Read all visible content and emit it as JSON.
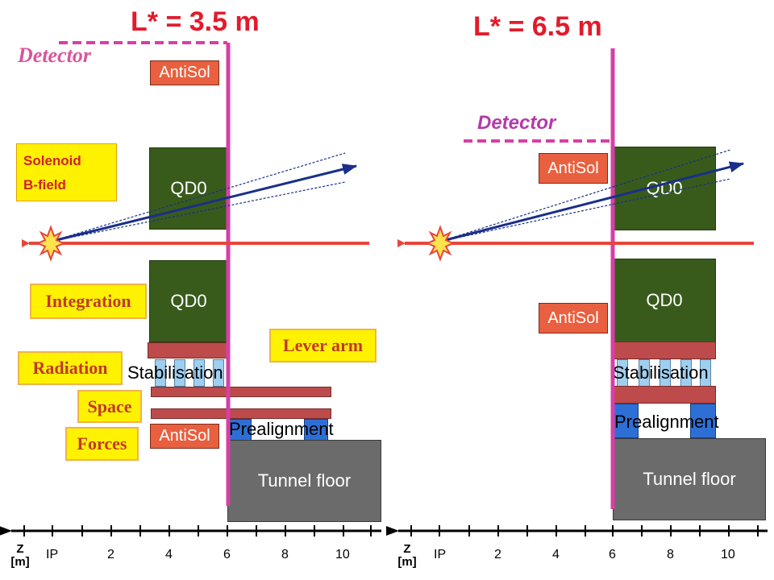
{
  "left_panel": {
    "title": "L* = 3.5 m",
    "detector": "Detector",
    "antisol_top": "AntiSol",
    "antisol_bottom": "AntiSol",
    "qd0_top": "QD0",
    "qd0_bottom": "QD0",
    "solenoid": [
      "Solenoid",
      "B-field"
    ],
    "stabilisation": "Stabilisation",
    "prealignment": "Prealignment",
    "tunnel_floor": "Tunnel floor",
    "tags": {
      "integration": "Integration",
      "radiation": "Radiation",
      "space": "Space",
      "forces": "Forces",
      "lever_arm": "Lever arm"
    }
  },
  "right_panel": {
    "title": "L* = 6.5 m",
    "detector": "Detector",
    "antisol_top": "AntiSol",
    "antisol_bottom": "AntiSol",
    "qd0_top": "QD0",
    "qd0_bottom": "QD0",
    "stabilisation": "Stabilisation",
    "prealignment": "Prealignment",
    "tunnel_floor": "Tunnel floor"
  },
  "axis": {
    "z_label": [
      "Z",
      "[m]"
    ],
    "ticks": [
      "IP",
      "2",
      "4",
      "6",
      "8",
      "10"
    ]
  },
  "colors": {
    "title": "#e21b2b",
    "detector_line": "#d63fa6",
    "qd0": "#385b1c",
    "antisol": "#e8603f",
    "girder": "#bd4b4b",
    "prealignment": "#2e6fd6",
    "tunnel": "#6b6b6b",
    "beam_red": "#e8453c",
    "beam_blue": "#1a2f8a",
    "tag_fill": "#fff200"
  }
}
